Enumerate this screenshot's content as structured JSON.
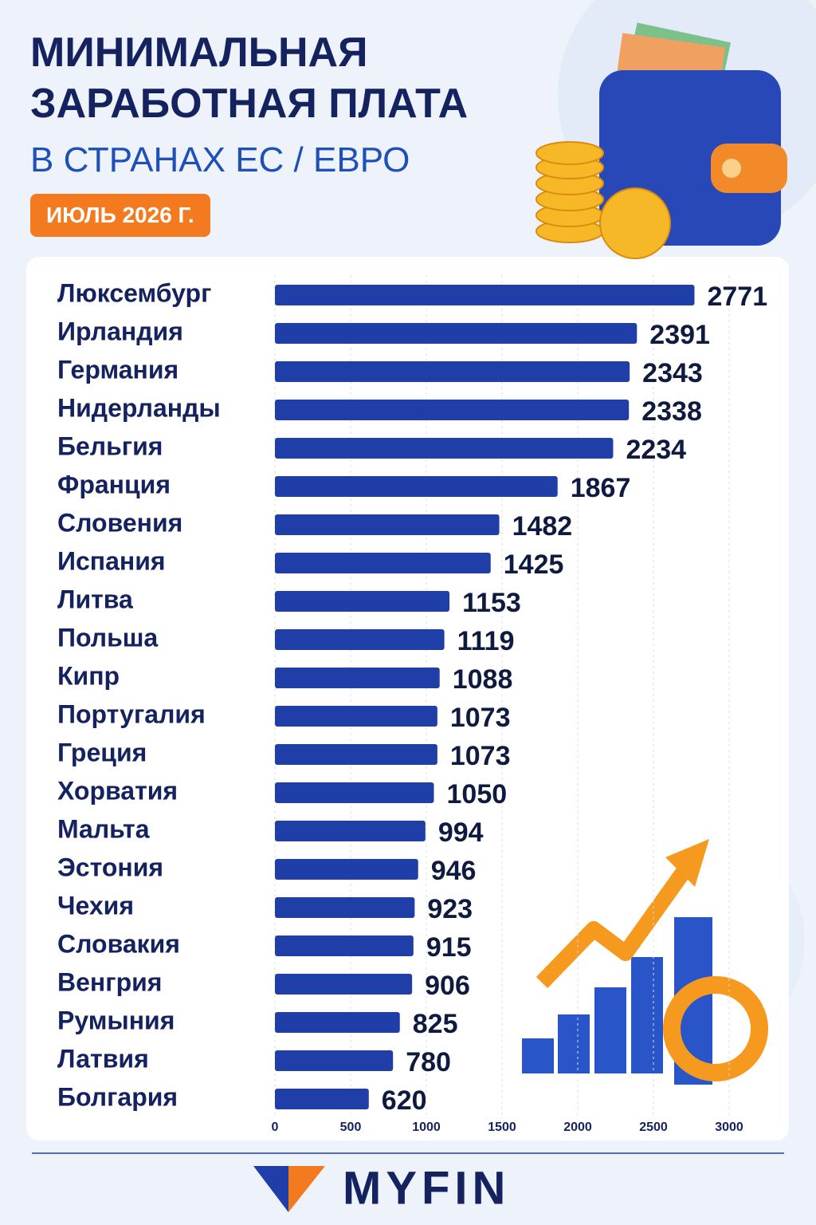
{
  "chart_data": {
    "type": "bar",
    "orientation": "horizontal",
    "title": "МИНИМАЛЬНАЯ ЗАРАБОТНАЯ ПЛАТА",
    "subtitle": "В СТРАНАХ ЕС / ЕВРО",
    "badge": "ИЮЛЬ 2026 Г.",
    "categories": [
      "Люксембург",
      "Ирландия",
      "Германия",
      "Нидерланды",
      "Бельгия",
      "Франция",
      "Словения",
      "Испания",
      "Литва",
      "Польша",
      "Кипр",
      "Португалия",
      "Греция",
      "Хорватия",
      "Мальта",
      "Эстония",
      "Чехия",
      "Словакия",
      "Венгрия",
      "Румыния",
      "Латвия",
      "Болгария"
    ],
    "values": [
      2771,
      2391,
      2343,
      2338,
      2234,
      1867,
      1482,
      1425,
      1153,
      1119,
      1088,
      1073,
      1073,
      1050,
      994,
      946,
      923,
      915,
      906,
      825,
      780,
      620
    ],
    "color": "#1f3ea8",
    "xlim": [
      0,
      3000
    ],
    "xticks": [
      0,
      500,
      1000,
      1500,
      2000,
      2500,
      3000
    ],
    "grid": true,
    "logo": "MYFIN"
  }
}
